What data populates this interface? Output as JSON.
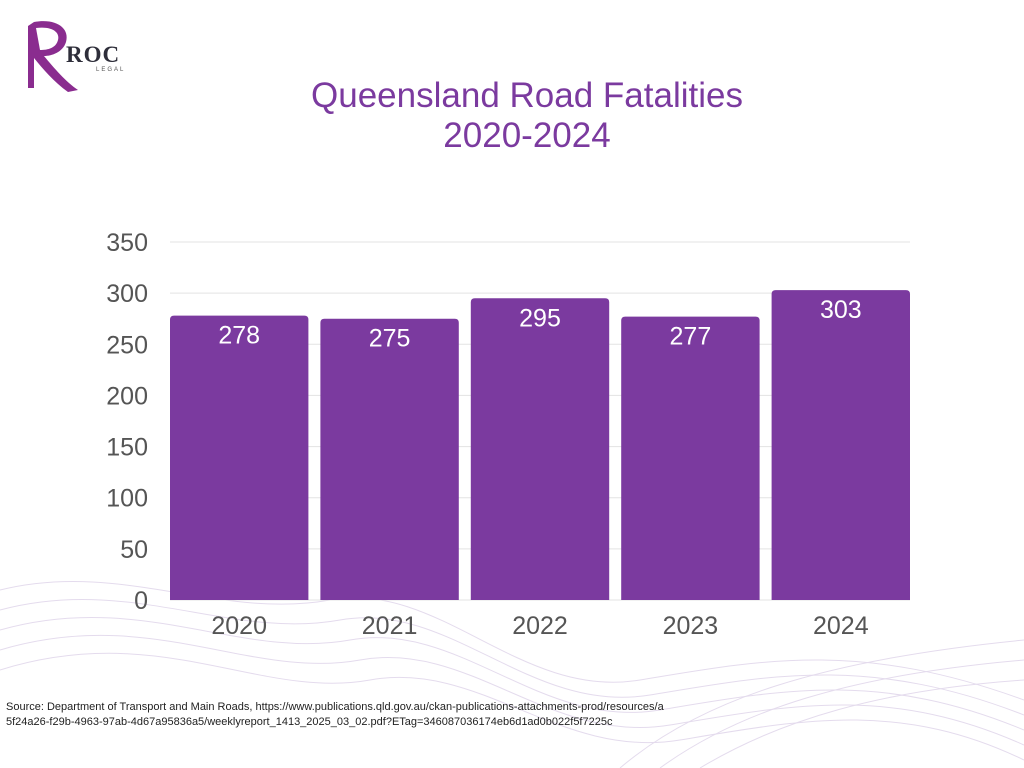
{
  "brand": {
    "name": "ROC",
    "sub": "LEGAL",
    "color": "#7b3a9f"
  },
  "chart_data": {
    "type": "bar",
    "title_line1": "Queensland Road Fatalities",
    "title_line2": "2020-2024",
    "categories": [
      "2020",
      "2021",
      "2022",
      "2023",
      "2024"
    ],
    "values": [
      278,
      275,
      295,
      277,
      303
    ],
    "ylim": [
      0,
      350
    ],
    "yticks": [
      0,
      50,
      100,
      150,
      200,
      250,
      300,
      350
    ],
    "bar_color": "#7b3a9f",
    "grid": true,
    "data_labels": true
  },
  "source": "Source: Department of Transport and Main Roads, https://www.publications.qld.gov.au/ckan-publications-attachments-prod/resources/a5f24a26-f29b-4963-97ab-4d67a95836a5/weeklyreport_1413_2025_03_02.pdf?ETag=346087036174eb6d1ad0b022f5f7225c"
}
